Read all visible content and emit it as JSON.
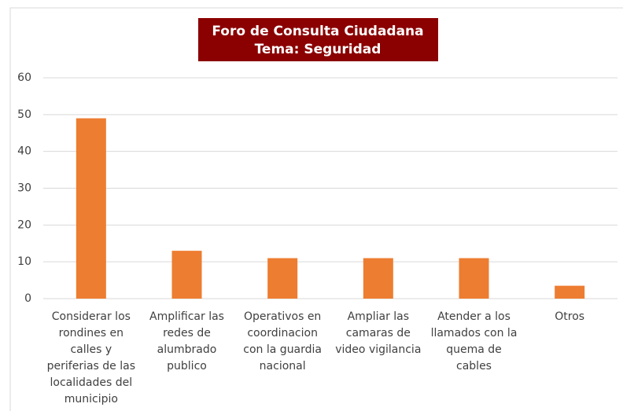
{
  "chart_data": {
    "type": "bar",
    "title": "Foro de Consulta Ciudadana",
    "subtitle": "Tema: Seguridad",
    "categories": [
      "Considerar los rondines en calles y periferias de las localidades del municipio",
      "Amplificar las redes de alumbrado publico",
      "Operativos en coordinacion con la guardia nacional",
      "Ampliar las camaras de video vigilancia",
      "Atender a los llamados con la quema de cables",
      "Otros"
    ],
    "values": [
      49,
      13,
      11,
      11,
      11,
      3.5
    ],
    "color": "#ed7d31",
    "ylim": [
      0,
      60
    ],
    "yticks": [
      0,
      10,
      20,
      30,
      40,
      50,
      60
    ],
    "grid": true
  }
}
